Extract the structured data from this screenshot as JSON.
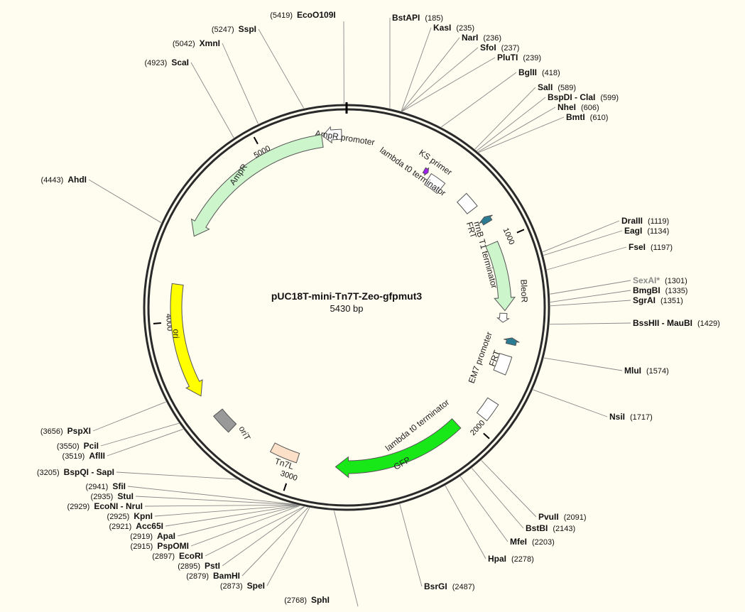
{
  "plasmid": {
    "name": "pUC18T-mini-Tn7T-Zeo-gfpmut3",
    "size_label": "5430 bp",
    "length": 5430
  },
  "ticks": [
    {
      "pos": 1000,
      "label": "1000"
    },
    {
      "pos": 2000,
      "label": "2000"
    },
    {
      "pos": 3000,
      "label": "3000"
    },
    {
      "pos": 4000,
      "label": "4000"
    },
    {
      "pos": 5000,
      "label": "5000"
    }
  ],
  "features": [
    {
      "id": "amp-promoter",
      "label": "AmpR promoter",
      "start": 5310,
      "end": 5405,
      "strand": -1,
      "color": "#ffffff",
      "kind": "arrow"
    },
    {
      "id": "ampr",
      "label": "AmpR",
      "start": 4450,
      "end": 5305,
      "strand": -1,
      "color": "#ccf5cc",
      "kind": "arrow"
    },
    {
      "id": "ks-primer",
      "label": "KS primer",
      "start": 445,
      "end": 470,
      "strand": 1,
      "color": "#a020f0",
      "kind": "arrow"
    },
    {
      "id": "lambda-t0-1",
      "label": "lambda t0 terminator",
      "start": 488,
      "end": 580,
      "strand": 1,
      "color": "#ffffff",
      "kind": "box"
    },
    {
      "id": "rrnb-t1",
      "label": "rrnB T1 terminator",
      "start": 700,
      "end": 787,
      "strand": 1,
      "color": "#ffffff",
      "kind": "box"
    },
    {
      "id": "frt-1",
      "label": "FRT",
      "start": 855,
      "end": 889,
      "strand": -1,
      "color": "#2b7c93",
      "kind": "arrow"
    },
    {
      "id": "bleor",
      "label": "BleoR",
      "start": 1000,
      "end": 1375,
      "strand": 1,
      "color": "#ccf5cc",
      "kind": "arrow"
    },
    {
      "id": "em7-promoter",
      "label": "EM7 promoter",
      "start": 1390,
      "end": 1440,
      "strand": 1,
      "color": "#ffffff",
      "kind": "arrow"
    },
    {
      "id": "frt-2",
      "label": "FRT",
      "start": 1515,
      "end": 1549,
      "strand": -1,
      "color": "#2b7c93",
      "kind": "arrow"
    },
    {
      "id": "lambda-t0-2a",
      "label": "",
      "start": 1610,
      "end": 1705,
      "strand": 1,
      "color": "#ffffff",
      "kind": "box"
    },
    {
      "id": "lambda-t0-2",
      "label": "lambda t0 terminator",
      "start": 1850,
      "end": 1945,
      "strand": 1,
      "color": "#ffffff",
      "kind": "box"
    },
    {
      "id": "gfp",
      "label": "GFP",
      "start": 2060,
      "end": 2775,
      "strand": 1,
      "color": "#18e818",
      "kind": "arrow"
    },
    {
      "id": "tn7l",
      "label": "Tn7L",
      "start": 2985,
      "end": 3135,
      "strand": 1,
      "color": "#fde0c8",
      "kind": "box"
    },
    {
      "id": "orit",
      "label": "oriT",
      "start": 3370,
      "end": 3480,
      "strand": 1,
      "color": "#999999",
      "kind": "box"
    },
    {
      "id": "ori",
      "label": "ori",
      "start": 3600,
      "end": 4190,
      "strand": -1,
      "color": "#ffff00",
      "kind": "arrow"
    }
  ],
  "sites": [
    {
      "name": "EcoO109I",
      "pos": "(5419)",
      "bp": 5419
    },
    {
      "name": "BstAPI",
      "pos": "(185)",
      "bp": 185
    },
    {
      "name": "KasI",
      "pos": "(235)",
      "bp": 235
    },
    {
      "name": "NarI",
      "pos": "(236)",
      "bp": 236
    },
    {
      "name": "SfoI",
      "pos": "(237)",
      "bp": 237
    },
    {
      "name": "PluTI",
      "pos": "(239)",
      "bp": 239
    },
    {
      "name": "BglII",
      "pos": "(418)",
      "bp": 418
    },
    {
      "name": "SalI",
      "pos": "(589)",
      "bp": 589
    },
    {
      "name": "BspDI - ClaI",
      "pos": "(599)",
      "bp": 599
    },
    {
      "name": "NheI",
      "pos": "(606)",
      "bp": 606
    },
    {
      "name": "BmtI",
      "pos": "(610)",
      "bp": 610
    },
    {
      "name": "DraIII",
      "pos": "(1119)",
      "bp": 1119
    },
    {
      "name": "EagI",
      "pos": "(1134)",
      "bp": 1134
    },
    {
      "name": "FseI",
      "pos": "(1197)",
      "bp": 1197
    },
    {
      "name": "SexAI*",
      "pos": "(1301)",
      "bp": 1301,
      "grey": true
    },
    {
      "name": "BmgBI",
      "pos": "(1335)",
      "bp": 1335
    },
    {
      "name": "SgrAI",
      "pos": "(1351)",
      "bp": 1351
    },
    {
      "name": "BssHII - MauBI",
      "pos": "(1429)",
      "bp": 1429
    },
    {
      "name": "MluI",
      "pos": "(1574)",
      "bp": 1574
    },
    {
      "name": "NsiI",
      "pos": "(1717)",
      "bp": 1717
    },
    {
      "name": "PvuII",
      "pos": "(2091)",
      "bp": 2091
    },
    {
      "name": "BstBI",
      "pos": "(2143)",
      "bp": 2143
    },
    {
      "name": "MfeI",
      "pos": "(2203)",
      "bp": 2203
    },
    {
      "name": "HpaI",
      "pos": "(2278)",
      "bp": 2278
    },
    {
      "name": "BsrGI",
      "pos": "(2487)",
      "bp": 2487
    },
    {
      "name": "SphI",
      "pos": "(2768)",
      "bp": 2768
    },
    {
      "name": "SpeI",
      "pos": "(2873)",
      "bp": 2873
    },
    {
      "name": "BamHI",
      "pos": "(2879)",
      "bp": 2879
    },
    {
      "name": "PstI",
      "pos": "(2895)",
      "bp": 2895
    },
    {
      "name": "EcoRI",
      "pos": "(2897)",
      "bp": 2897
    },
    {
      "name": "PspOMI",
      "pos": "(2915)",
      "bp": 2915
    },
    {
      "name": "ApaI",
      "pos": "(2919)",
      "bp": 2919
    },
    {
      "name": "Acc65I",
      "pos": "(2921)",
      "bp": 2921
    },
    {
      "name": "KpnI",
      "pos": "(2925)",
      "bp": 2925
    },
    {
      "name": "EcoNI - NruI",
      "pos": "(2929)",
      "bp": 2929
    },
    {
      "name": "StuI",
      "pos": "(2935)",
      "bp": 2935
    },
    {
      "name": "SfiI",
      "pos": "(2941)",
      "bp": 2941
    },
    {
      "name": "BspQI - SapI",
      "pos": "(3205)",
      "bp": 3205
    },
    {
      "name": "AflII",
      "pos": "(3519)",
      "bp": 3519
    },
    {
      "name": "PciI",
      "pos": "(3550)",
      "bp": 3550
    },
    {
      "name": "PspXI",
      "pos": "(3656)",
      "bp": 3656
    },
    {
      "name": "AhdI",
      "pos": "(4443)",
      "bp": 4443
    },
    {
      "name": "ScaI",
      "pos": "(4923)",
      "bp": 4923
    },
    {
      "name": "XmnI",
      "pos": "(5042)",
      "bp": 5042
    },
    {
      "name": "SspI",
      "pos": "(5247)",
      "bp": 5247
    }
  ]
}
